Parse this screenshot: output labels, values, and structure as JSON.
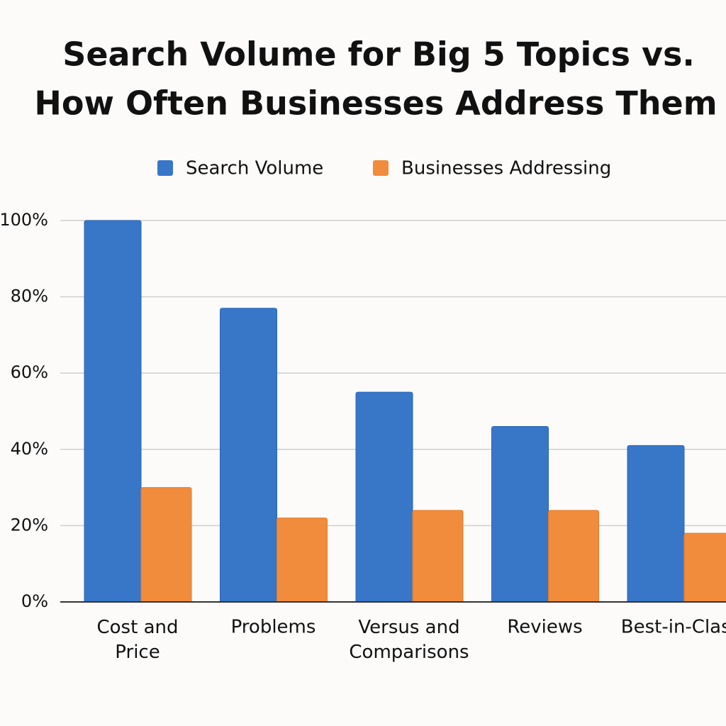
{
  "chart_data": {
    "type": "bar",
    "title": [
      "Search Volume for Big 5 Topics vs.",
      "How Often Businesses Address Them"
    ],
    "categories": [
      "Cost and Price",
      "Problems",
      "Versus and Comparisons",
      "Reviews",
      "Best-in-Class"
    ],
    "series": [
      {
        "name": "Search Volume",
        "color": "#3876c8",
        "values": [
          100,
          77,
          55,
          46,
          41
        ]
      },
      {
        "name": "Businesses Addressing",
        "color": "#f08c3c",
        "values": [
          30,
          22,
          24,
          24,
          18
        ]
      }
    ],
    "ylim": [
      0,
      100
    ],
    "yticks": [
      {
        "value": 0,
        "label": "0%"
      },
      {
        "value": 20,
        "label": "20%"
      },
      {
        "value": 40,
        "label": "40%"
      },
      {
        "value": 60,
        "label": "60%"
      },
      {
        "value": 80,
        "label": "80%"
      },
      {
        "value": 100,
        "label": "100%"
      }
    ],
    "grid": true,
    "legend": "top"
  }
}
